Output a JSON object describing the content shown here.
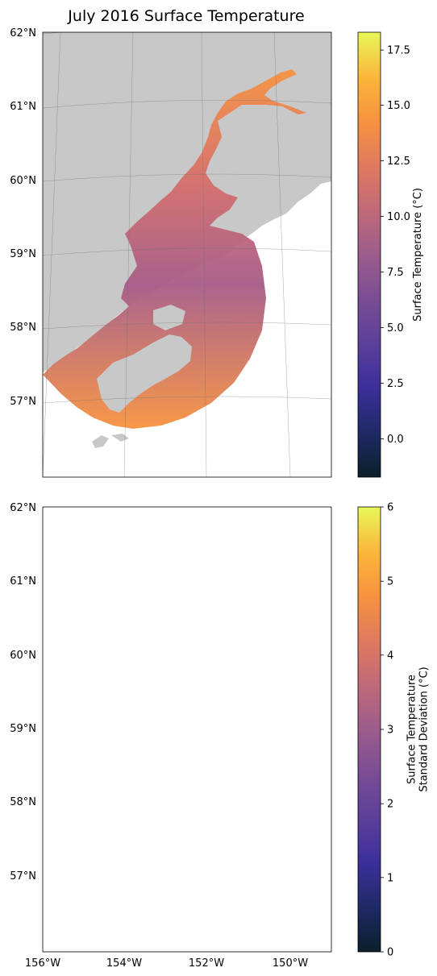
{
  "figure": {
    "title": "July 2016 Surface Temperature"
  },
  "colors": {
    "land": "#c8c8c8",
    "grid": "#707070",
    "cmap": [
      "#0b1f2b",
      "#1f2a66",
      "#3b2f9a",
      "#5c3f9a",
      "#7a4d94",
      "#9c5c8c",
      "#c06a78",
      "#e07a5f",
      "#f7923f",
      "#fbb73a",
      "#e8f75a"
    ]
  },
  "map": {
    "lat_labels": [
      "62°N",
      "61°N",
      "60°N",
      "59°N",
      "58°N",
      "57°N"
    ],
    "lon_labels": [
      "156°W",
      "154°W",
      "152°W",
      "150°W"
    ]
  },
  "panels": [
    {
      "id": "mean",
      "colorbar": {
        "label_lines": [
          "Surface Temperature (°C)"
        ],
        "ticks": [
          {
            "label": "17.5",
            "frac": 0.96
          },
          {
            "label": "15.0",
            "frac": 0.836
          },
          {
            "label": "12.5",
            "frac": 0.711
          },
          {
            "label": "10.0",
            "frac": 0.586
          },
          {
            "label": "7.5",
            "frac": 0.461
          },
          {
            "label": "5.0",
            "frac": 0.336
          },
          {
            "label": "2.5",
            "frac": 0.211
          },
          {
            "label": "0.0",
            "frac": 0.086
          }
        ]
      }
    },
    {
      "id": "std",
      "colorbar": {
        "label_lines": [
          "Surface Temperature",
          "Standard Deviation (°C)"
        ],
        "ticks": [
          {
            "label": "6",
            "frac": 1.0
          },
          {
            "label": "5",
            "frac": 0.833
          },
          {
            "label": "4",
            "frac": 0.667
          },
          {
            "label": "3",
            "frac": 0.5
          },
          {
            "label": "2",
            "frac": 0.333
          },
          {
            "label": "1",
            "frac": 0.167
          },
          {
            "label": "0",
            "frac": 0.0
          }
        ]
      }
    }
  ]
}
